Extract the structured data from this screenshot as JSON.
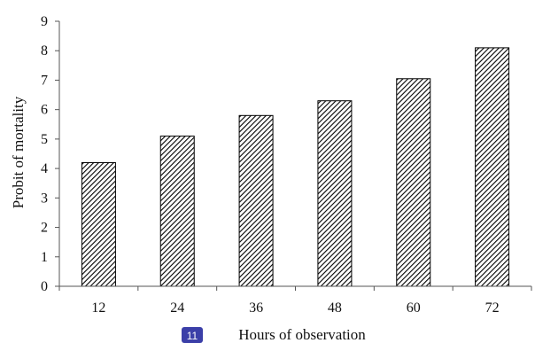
{
  "chart_data": {
    "type": "bar",
    "categories": [
      "12",
      "24",
      "36",
      "48",
      "60",
      "72"
    ],
    "values": [
      4.2,
      5.1,
      5.8,
      6.3,
      7.05,
      8.1
    ],
    "xlabel": "Hours of observation",
    "ylabel": "Probit of mortality",
    "ylim": [
      0,
      9
    ],
    "yticks": [
      "0",
      "1",
      "2",
      "3",
      "4",
      "5",
      "6",
      "7",
      "8",
      "9"
    ],
    "grid": false,
    "bar_fill": "diagonal-hatch",
    "bar_color": "#000000"
  },
  "badge": {
    "text": "11",
    "color": "#3b3fa8"
  }
}
